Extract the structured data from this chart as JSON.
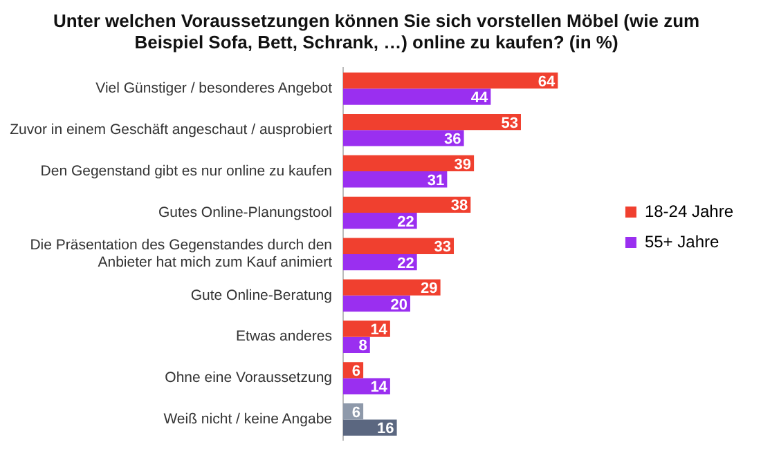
{
  "chart_data": {
    "type": "bar",
    "orientation": "horizontal",
    "title": "Unter welchen Voraussetzungen können Sie sich vorstellen Möbel (wie zum Beispiel Sofa, Bett, Schrank, …) online zu kaufen? (in %)",
    "categories": [
      "Viel Günstiger / besonderes Angebot",
      "Zuvor in einem Geschäft angeschaut / ausprobiert",
      "Den Gegenstand gibt es nur online zu kaufen",
      "Gutes Online-Planungstool",
      "Die Präsentation des Gegenstandes durch den Anbieter hat mich zum Kauf animiert",
      "Gute Online-Beratung",
      "Etwas anderes",
      "Ohne eine Voraussetzung",
      "Weiß nicht / keine Angabe"
    ],
    "series": [
      {
        "name": "18-24 Jahre",
        "color": "#f0402f",
        "colors": [
          "#f0402f",
          "#f0402f",
          "#f0402f",
          "#f0402f",
          "#f0402f",
          "#f0402f",
          "#f0402f",
          "#f0402f",
          "#8e99aa"
        ],
        "values": [
          64,
          53,
          39,
          38,
          33,
          29,
          14,
          6,
          6
        ]
      },
      {
        "name": "55+ Jahre",
        "color": "#9a2ff0",
        "colors": [
          "#9a2ff0",
          "#9a2ff0",
          "#9a2ff0",
          "#9a2ff0",
          "#9a2ff0",
          "#9a2ff0",
          "#9a2ff0",
          "#9a2ff0",
          "#5b6780"
        ],
        "values": [
          44,
          36,
          31,
          22,
          22,
          20,
          8,
          14,
          16
        ]
      }
    ],
    "data_labels": true,
    "legend": "right",
    "grid": false
  }
}
